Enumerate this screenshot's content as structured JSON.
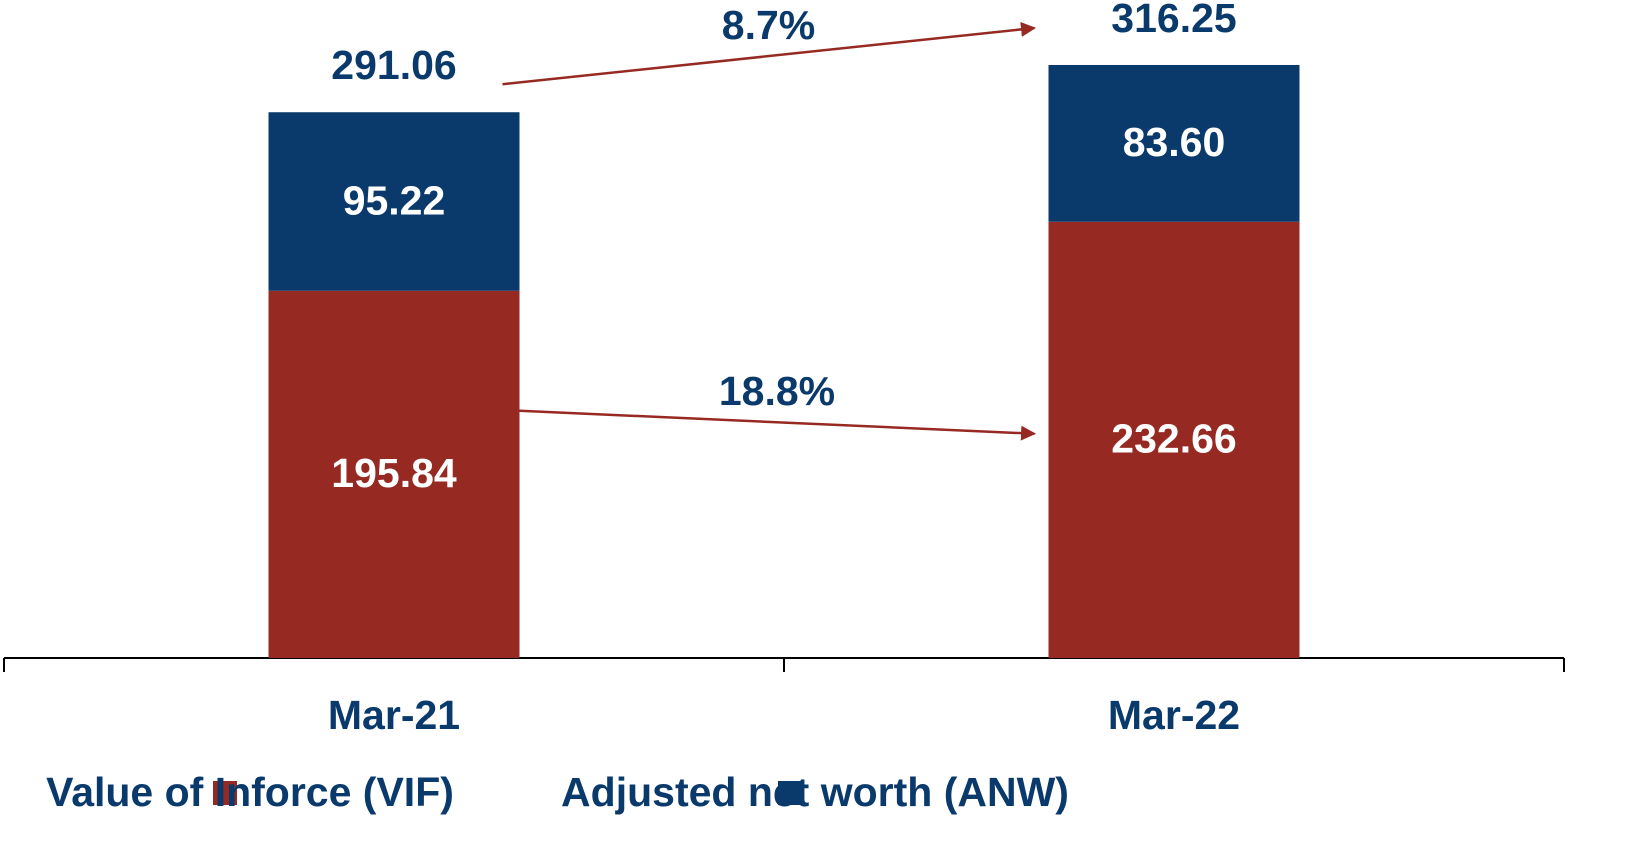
{
  "chart_data": {
    "type": "stacked_bar",
    "categories": [
      "Mar-21",
      "Mar-22"
    ],
    "series": [
      {
        "name": "Value of Inforce (VIF)",
        "color": "#962a22",
        "values": [
          195.84,
          232.66
        ]
      },
      {
        "name": "Adjusted net worth (ANW)",
        "color": "#0a3a6b",
        "values": [
          95.22,
          83.6
        ],
        "value_labels": [
          "95.22",
          "83.60"
        ]
      }
    ],
    "totals": [
      291.06,
      316.25
    ],
    "annotations": [
      {
        "text": "8.7%"
      },
      {
        "text": "18.8%"
      }
    ],
    "legend": "bottom"
  }
}
